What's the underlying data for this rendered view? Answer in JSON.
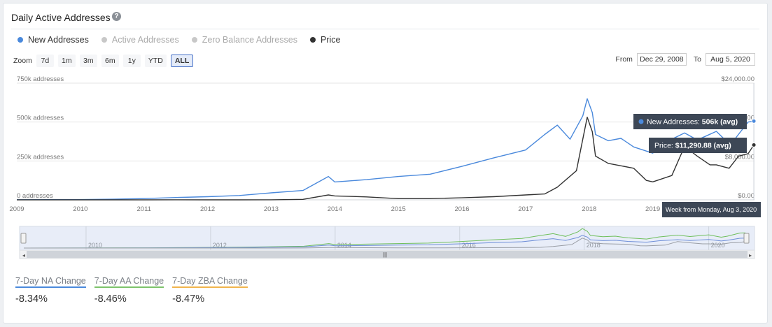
{
  "title": "Daily Active Addresses",
  "legend": [
    {
      "label": "New Addresses",
      "color": "#4a89dc",
      "active": true
    },
    {
      "label": "Active Addresses",
      "color": "#c8c8c8",
      "active": false
    },
    {
      "label": "Zero Balance Addresses",
      "color": "#c8c8c8",
      "active": false
    },
    {
      "label": "Price",
      "color": "#333333",
      "active": true
    }
  ],
  "zoom": {
    "label": "Zoom",
    "buttons": [
      "7d",
      "1m",
      "3m",
      "6m",
      "1y",
      "YTD",
      "ALL"
    ],
    "selected": "ALL"
  },
  "range": {
    "from_label": "From",
    "from_value": "Dec 29, 2008",
    "to_label": "To",
    "to_value": "Aug 5, 2020"
  },
  "tooltips": {
    "new_addresses": {
      "label": "New Addresses: ",
      "value": "506k (avg)"
    },
    "price": {
      "label": "Price: ",
      "value": "$11,290.88 (avg)"
    },
    "date": "Week from Monday, Aug 3, 2020"
  },
  "stats": [
    {
      "label": "7-Day NA Change",
      "value": "-8.34%",
      "color": "#4a89dc"
    },
    {
      "label": "7-Day AA Change",
      "value": "-8.46%",
      "color": "#7cc36a"
    },
    {
      "label": "7-Day ZBA Change",
      "value": "-8.47%",
      "color": "#f0b44c"
    }
  ],
  "chart_data": {
    "type": "line",
    "title": "",
    "xlabel": "",
    "ylabel_left": "",
    "ylabel_right": "",
    "xlim": [
      2009.0,
      2020.6
    ],
    "y_left": {
      "ylim": [
        0,
        750000
      ],
      "ticks": [
        0,
        250000,
        500000,
        750000
      ],
      "tick_labels": [
        "0 addresses",
        "250k addresses",
        "500k addresses",
        "750k addresses"
      ]
    },
    "y_right": {
      "ylim": [
        0,
        24000
      ],
      "ticks": [
        0,
        8000,
        16000,
        24000
      ],
      "tick_labels": [
        "$0.00",
        "$8,000.00",
        "$16,000.00",
        "$24,000.00"
      ]
    },
    "x_ticks": [
      2009,
      2010,
      2011,
      2012,
      2013,
      2014,
      2015,
      2016,
      2017,
      2018,
      2019
    ],
    "x_tick_labels": [
      "2009",
      "2010",
      "2011",
      "2012",
      "2013",
      "2014",
      "2015",
      "2016",
      "2017",
      "2018",
      "2019"
    ],
    "series": [
      {
        "name": "New Addresses",
        "axis": "left",
        "color": "#4a89dc",
        "x": [
          2009.0,
          2010.0,
          2010.5,
          2011.0,
          2011.5,
          2012.0,
          2012.5,
          2013.0,
          2013.5,
          2013.9,
          2014.0,
          2014.5,
          2015.0,
          2015.5,
          2016.0,
          2016.5,
          2017.0,
          2017.3,
          2017.5,
          2017.7,
          2017.9,
          2017.97,
          2018.05,
          2018.1,
          2018.3,
          2018.5,
          2018.7,
          2019.0,
          2019.2,
          2019.5,
          2019.7,
          2020.0,
          2020.2,
          2020.3,
          2020.5,
          2020.59
        ],
        "y": [
          1000,
          2000,
          4000,
          8000,
          15000,
          20000,
          28000,
          45000,
          60000,
          150000,
          115000,
          130000,
          150000,
          165000,
          215000,
          270000,
          320000,
          420000,
          480000,
          390000,
          540000,
          650000,
          560000,
          420000,
          380000,
          395000,
          340000,
          300000,
          370000,
          430000,
          385000,
          440000,
          360000,
          395000,
          500000,
          506000
        ]
      },
      {
        "name": "Price",
        "axis": "right",
        "color": "#333333",
        "x": [
          2009.0,
          2010.5,
          2011.0,
          2011.5,
          2012.0,
          2012.5,
          2013.0,
          2013.5,
          2013.9,
          2014.0,
          2014.5,
          2015.0,
          2015.5,
          2016.0,
          2016.5,
          2017.0,
          2017.3,
          2017.5,
          2017.8,
          2017.97,
          2018.05,
          2018.1,
          2018.3,
          2018.5,
          2018.7,
          2018.9,
          2019.0,
          2019.3,
          2019.5,
          2019.7,
          2019.9,
          2020.0,
          2020.2,
          2020.35,
          2020.5,
          2020.59
        ],
        "y": [
          0,
          0,
          1,
          10,
          5,
          7,
          13,
          100,
          1000,
          800,
          600,
          250,
          250,
          420,
          650,
          1000,
          1200,
          2600,
          6000,
          17000,
          14000,
          9000,
          7500,
          7000,
          6500,
          4000,
          3700,
          5000,
          11000,
          9000,
          7200,
          7200,
          6500,
          9000,
          9500,
          11290
        ]
      }
    ],
    "navigator_x_labels": [
      "2010",
      "2012",
      "2014",
      "2016",
      "2018",
      "2020"
    ]
  }
}
